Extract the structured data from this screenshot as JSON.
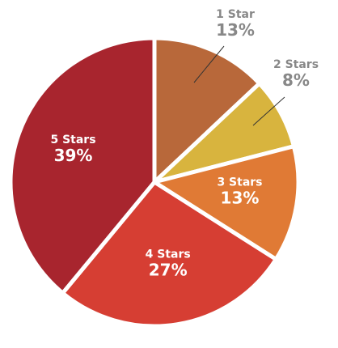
{
  "chart_data": {
    "type": "pie",
    "title": "",
    "slices": [
      {
        "name": "1 Star",
        "value": 13,
        "label": "13%",
        "color": "#b8683a"
      },
      {
        "name": "2 Stars",
        "value": 8,
        "label": "8%",
        "color": "#d8b43e"
      },
      {
        "name": "3 Stars",
        "value": 13,
        "label": "13%",
        "color": "#e07a35"
      },
      {
        "name": "4 Stars",
        "value": 27,
        "label": "27%",
        "color": "#d63e33"
      },
      {
        "name": "5 Stars",
        "value": 39,
        "label": "39%",
        "color": "#a8252e"
      }
    ],
    "start": "12 o'clock",
    "direction": "clockwise",
    "label_placement": {
      "1 Star": "outside",
      "2 Stars": "outside",
      "3 Stars": "inside",
      "4 Stars": "inside",
      "5 Stars": "inside"
    }
  }
}
